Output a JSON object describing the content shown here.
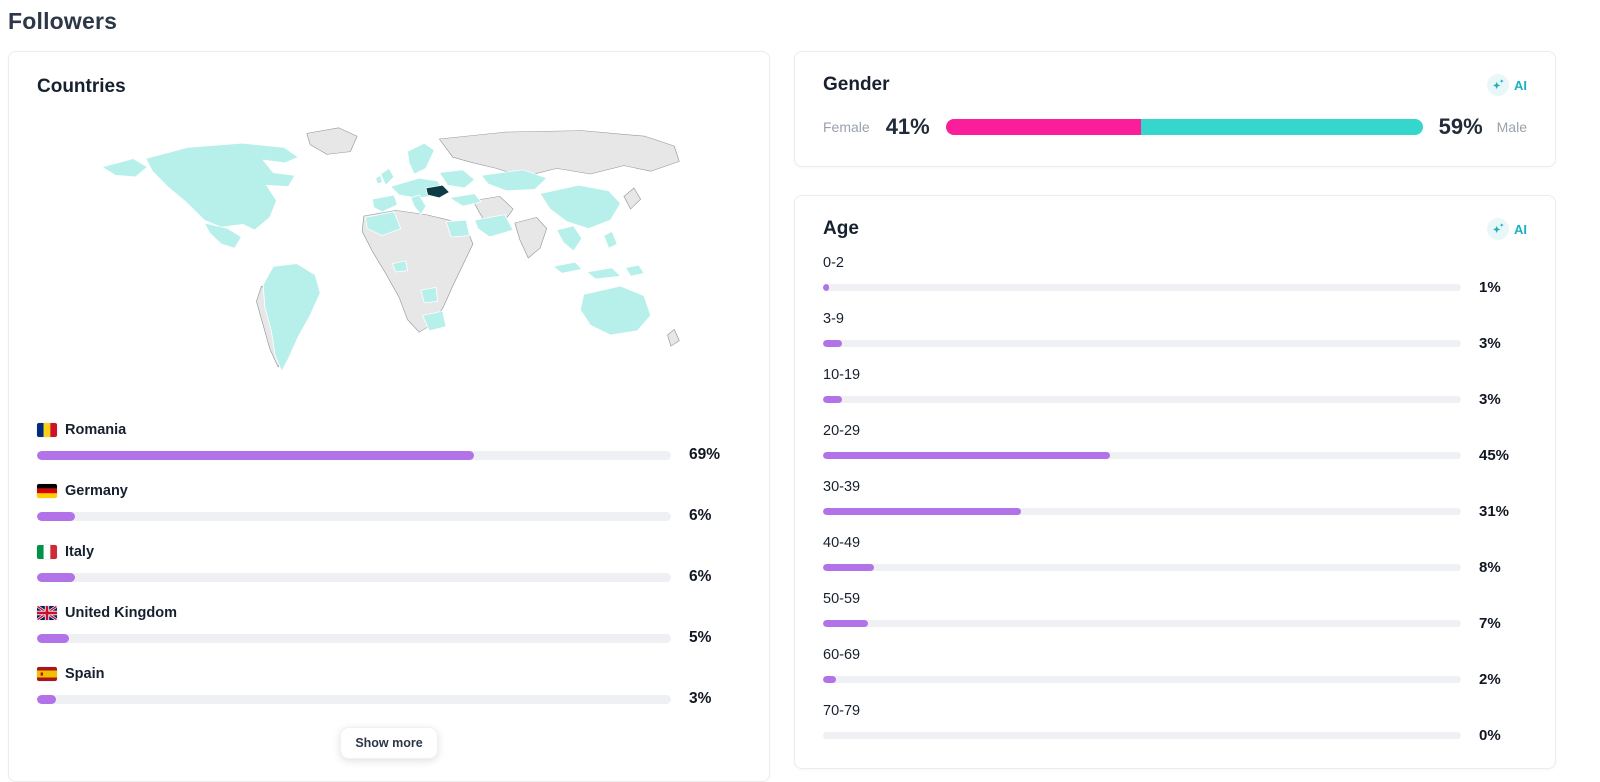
{
  "page": {
    "title": "Followers"
  },
  "theme": {
    "accent_purple": "#b273e8",
    "bar_track": "#eef0f4",
    "female_pink": "#fa1e9a",
    "male_teal": "#35d6cc",
    "ai_teal": "#17b3c0",
    "map_highlight": "#b7f0ea",
    "map_base": "#e7e7e7",
    "map_top_country": "#0e3c46"
  },
  "countries_card": {
    "title": "Countries",
    "show_more_label": "Show more",
    "map_icon": "world-choropleth-map",
    "items": [
      {
        "name": "Romania",
        "flag": "ro",
        "percent": 69
      },
      {
        "name": "Germany",
        "flag": "de",
        "percent": 6
      },
      {
        "name": "Italy",
        "flag": "it",
        "percent": 6
      },
      {
        "name": "United Kingdom",
        "flag": "gb",
        "percent": 5
      },
      {
        "name": "Spain",
        "flag": "es",
        "percent": 3
      }
    ]
  },
  "gender_card": {
    "title": "Gender",
    "ai_label": "AI",
    "female": {
      "label": "Female",
      "percent": 41
    },
    "male": {
      "label": "Male",
      "percent": 59
    }
  },
  "age_card": {
    "title": "Age",
    "ai_label": "AI",
    "items": [
      {
        "range": "0-2",
        "percent": 1
      },
      {
        "range": "3-9",
        "percent": 3
      },
      {
        "range": "10-19",
        "percent": 3
      },
      {
        "range": "20-29",
        "percent": 45
      },
      {
        "range": "30-39",
        "percent": 31
      },
      {
        "range": "40-49",
        "percent": 8
      },
      {
        "range": "50-59",
        "percent": 7
      },
      {
        "range": "60-69",
        "percent": 2
      },
      {
        "range": "70-79",
        "percent": 0
      }
    ]
  },
  "chart_data": [
    {
      "type": "bar",
      "title": "Countries",
      "orientation": "horizontal",
      "categories": [
        "Romania",
        "Germany",
        "Italy",
        "United Kingdom",
        "Spain"
      ],
      "values": [
        69,
        6,
        6,
        5,
        3
      ],
      "unit": "%",
      "xlim": [
        0,
        100
      ],
      "note": "top-5 follower countries, truncated by Show more button; world map highlights follower countries in teal, Romania (top) in dark navy"
    },
    {
      "type": "bar",
      "title": "Gender",
      "orientation": "horizontal-stacked",
      "categories": [
        "Female",
        "Male"
      ],
      "values": [
        41,
        59
      ],
      "unit": "%",
      "colors": [
        "#fa1e9a",
        "#35d6cc"
      ]
    },
    {
      "type": "bar",
      "title": "Age",
      "orientation": "horizontal",
      "categories": [
        "0-2",
        "3-9",
        "10-19",
        "20-29",
        "30-39",
        "40-49",
        "50-59",
        "60-69",
        "70-79"
      ],
      "values": [
        1,
        3,
        3,
        45,
        31,
        8,
        7,
        2,
        0
      ],
      "unit": "%",
      "xlim": [
        0,
        100
      ]
    }
  ]
}
